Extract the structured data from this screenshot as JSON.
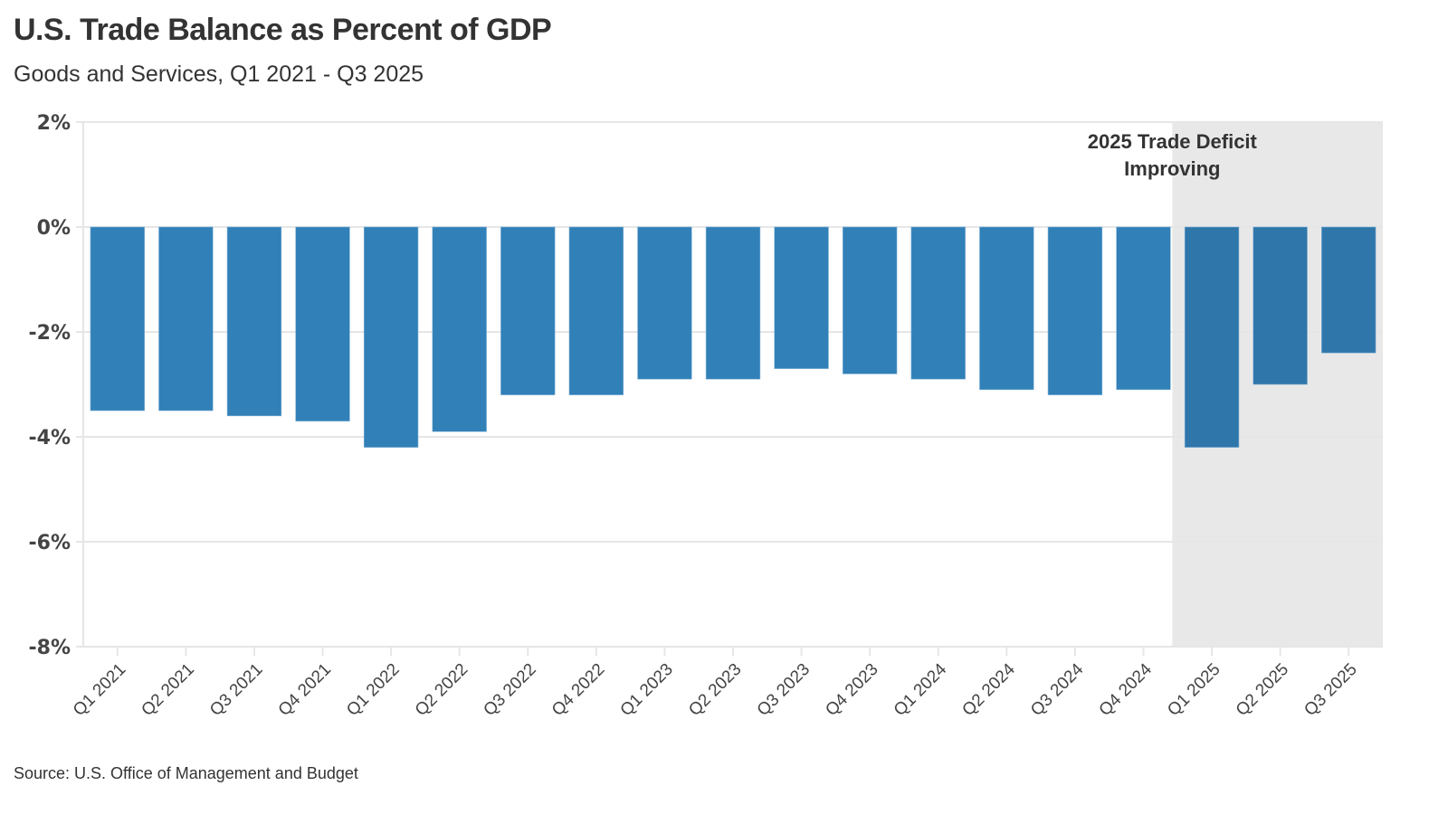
{
  "header": {
    "title": "U.S. Trade Balance as Percent of GDP",
    "subtitle": "Goods and Services, Q1 2021 - Q3 2025"
  },
  "footer": {
    "source": "Source: U.S. Office of Management and Budget"
  },
  "colors": {
    "bar": "#3180b8",
    "bar_highlight": "#2f76aa",
    "shade": "#e8e8e8",
    "grid": "#e6e6e6"
  },
  "chart_data": {
    "type": "bar",
    "title": "U.S. Trade Balance as Percent of GDP",
    "subtitle": "Goods and Services, Q1 2021 - Q3 2025",
    "xlabel": "",
    "ylabel": "",
    "ylim": [
      -8,
      2
    ],
    "yticks": [
      2,
      0,
      -2,
      -4,
      -6,
      -8
    ],
    "ytick_labels": [
      "2%",
      "0%",
      "-2%",
      "-4%",
      "-6%",
      "-8%"
    ],
    "grid": true,
    "legend": "none",
    "categories": [
      "Q1 2021",
      "Q2 2021",
      "Q3 2021",
      "Q4 2021",
      "Q1 2022",
      "Q2 2022",
      "Q3 2022",
      "Q4 2022",
      "Q1 2023",
      "Q2 2023",
      "Q3 2023",
      "Q4 2023",
      "Q1 2024",
      "Q2 2024",
      "Q3 2024",
      "Q4 2024",
      "Q1 2025",
      "Q2 2025",
      "Q3 2025"
    ],
    "values": [
      -3.5,
      -3.5,
      -3.6,
      -3.7,
      -4.2,
      -3.9,
      -3.2,
      -3.2,
      -2.9,
      -2.9,
      -2.7,
      -2.8,
      -2.9,
      -3.1,
      -3.2,
      -3.1,
      -4.2,
      -3.0,
      -2.4
    ],
    "highlight_range": {
      "from": "Q1 2025",
      "to": "Q3 2025",
      "annotation": [
        "2025 Trade Deficit",
        "Improving"
      ]
    },
    "source": "Source: U.S. Office of Management and Budget"
  }
}
